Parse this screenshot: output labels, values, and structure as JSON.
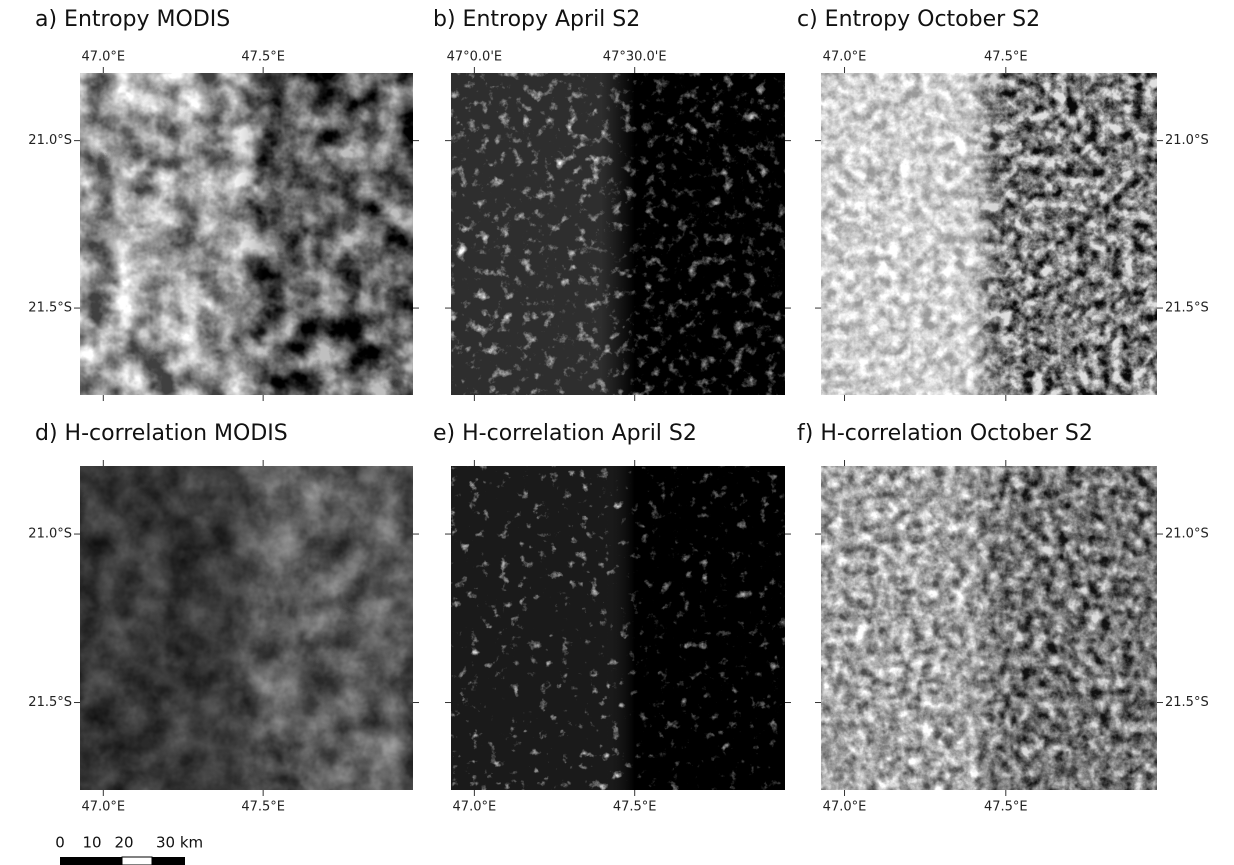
{
  "panels": [
    {
      "title": "a) Entropy MODIS",
      "top_labels": [
        "47.0°E",
        "47.5°E"
      ],
      "left_labels": [
        "21.0°S",
        "21.5°S"
      ]
    },
    {
      "title": "b) Entropy April S2",
      "top_labels": [
        "47°0.0'E",
        "47°30.0'E"
      ]
    },
    {
      "title": "c) Entropy October S2",
      "top_labels": [
        "47.0°E",
        "47.5°E"
      ],
      "right_labels": [
        "21.0°S",
        "21.5°S"
      ]
    },
    {
      "title": "d) H-correlation MODIS",
      "bottom_labels": [
        "47.0°E",
        "47.5°E"
      ],
      "left_labels": [
        "21.0°S",
        "21.5°S"
      ]
    },
    {
      "title": "e) H-correlation April S2",
      "bottom_labels": [
        "47.0°E",
        "47.5°E"
      ]
    },
    {
      "title": "f) H-correlation October S2",
      "bottom_labels": [
        "47.0°E",
        "47.5°E"
      ],
      "right_labels": [
        "21.0°S",
        "21.5°S"
      ]
    }
  ],
  "scale_bar": {
    "labels": [
      "0",
      "10",
      "20",
      "30 km"
    ]
  }
}
